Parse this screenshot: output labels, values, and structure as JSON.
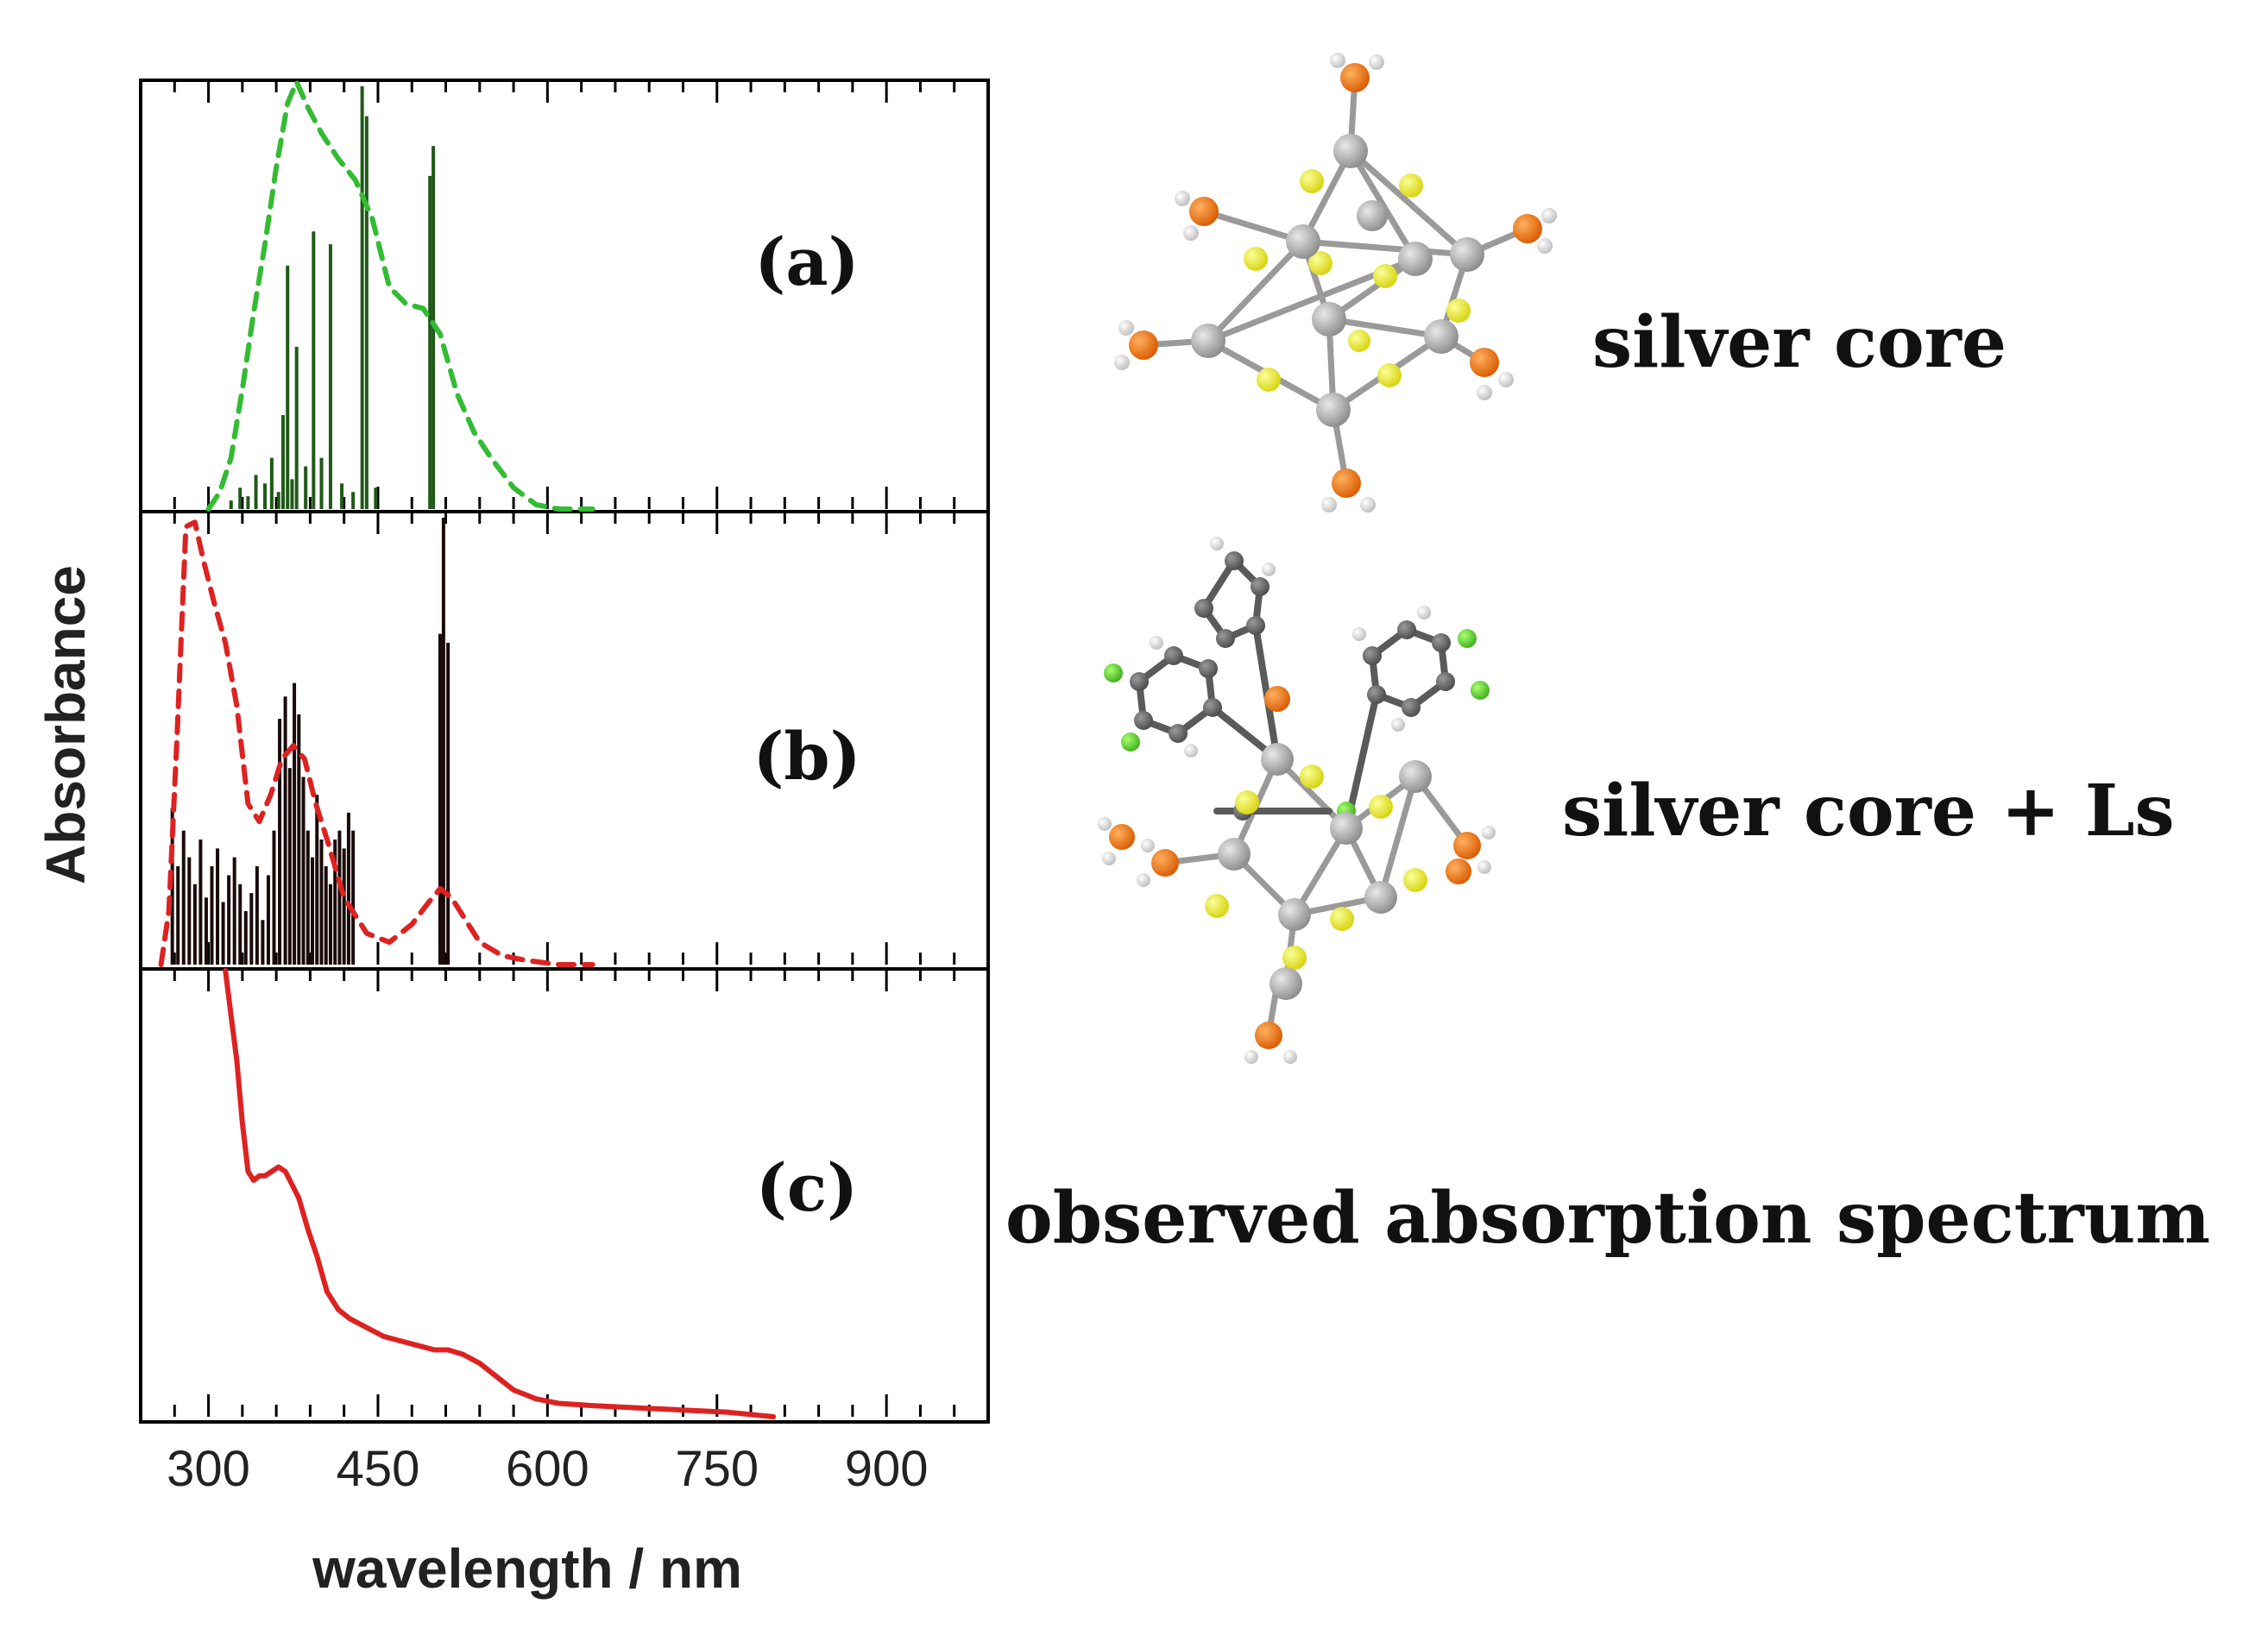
{
  "chart_data": {
    "type": "line",
    "x_axis": {
      "label": "wavelength / nm",
      "range": [
        240,
        990
      ],
      "ticks": [
        300,
        450,
        600,
        750,
        900
      ],
      "tick_labels": [
        "300",
        "450",
        "600",
        "750",
        "900"
      ]
    },
    "y_axis": {
      "label": "Absorbance"
    },
    "panels": [
      {
        "tag": "(a)",
        "structure_label": "silver core",
        "series": [
          {
            "name": "calculated spectrum (broadened)",
            "style": "dashed",
            "color": "#33bb33",
            "x": [
              300,
              310,
              320,
              330,
              340,
              350,
              360,
              370,
              378,
              388,
              400,
              415,
              430,
              445,
              460,
              475,
              490,
              505,
              520,
              535,
              550,
              570,
              590,
              610,
              640
            ],
            "y": [
              0.0,
              0.04,
              0.12,
              0.28,
              0.46,
              0.62,
              0.8,
              0.95,
              1.0,
              0.94,
              0.88,
              0.82,
              0.77,
              0.68,
              0.52,
              0.48,
              0.47,
              0.41,
              0.27,
              0.18,
              0.12,
              0.05,
              0.01,
              0.0,
              0.0
            ]
          }
        ],
        "sticks": {
          "name": "oscillator strengths",
          "color": "#1f5a16",
          "x": [
            320,
            328,
            335,
            342,
            350,
            356,
            362,
            366,
            370,
            374,
            378,
            386,
            393,
            400,
            408,
            418,
            428,
            436,
            440,
            448,
            496,
            499
          ],
          "y": [
            0.02,
            0.05,
            0.03,
            0.08,
            0.06,
            0.12,
            0.04,
            0.22,
            0.57,
            0.07,
            0.38,
            0.1,
            0.65,
            0.12,
            0.62,
            0.06,
            0.04,
            0.99,
            0.92,
            0.05,
            0.78,
            0.85
          ]
        }
      },
      {
        "tag": "(b)",
        "structure_label": "silver core + Ls",
        "series": [
          {
            "name": "calculated spectrum (broadened)",
            "style": "dashed",
            "color": "#dd2222",
            "x": [
              258,
              265,
              272,
              280,
              288,
              296,
              305,
              315,
              325,
              335,
              345,
              355,
              365,
              375,
              385,
              395,
              405,
              420,
              440,
              460,
              480,
              495,
              505,
              515,
              525,
              540,
              560,
              580,
              610,
              640
            ],
            "y": [
              0.0,
              0.12,
              0.5,
              0.98,
              0.99,
              0.9,
              0.81,
              0.72,
              0.58,
              0.36,
              0.32,
              0.38,
              0.46,
              0.49,
              0.46,
              0.36,
              0.28,
              0.15,
              0.07,
              0.05,
              0.09,
              0.14,
              0.17,
              0.15,
              0.11,
              0.05,
              0.02,
              0.01,
              0.0,
              0.0
            ]
          }
        ],
        "sticks": {
          "name": "oscillator strengths",
          "color": "#1a0a0a",
          "x": [
            268,
            273,
            278,
            283,
            288,
            293,
            298,
            303,
            308,
            313,
            318,
            323,
            328,
            333,
            338,
            343,
            348,
            353,
            358,
            363,
            368,
            372,
            376,
            380,
            384,
            388,
            392,
            396,
            400,
            404,
            408,
            412,
            416,
            420,
            424,
            428,
            505,
            508,
            512
          ],
          "y": [
            0.35,
            0.22,
            0.3,
            0.24,
            0.18,
            0.28,
            0.15,
            0.22,
            0.26,
            0.14,
            0.2,
            0.24,
            0.18,
            0.12,
            0.16,
            0.22,
            0.1,
            0.2,
            0.3,
            0.55,
            0.6,
            0.44,
            0.63,
            0.56,
            0.42,
            0.3,
            0.24,
            0.38,
            0.28,
            0.22,
            0.18,
            0.28,
            0.3,
            0.26,
            0.34,
            0.3,
            0.74,
            1.0,
            0.72
          ]
        }
      },
      {
        "tag": "(c)",
        "structure_label": "observed absorption spectrum",
        "series": [
          {
            "name": "observed spectrum",
            "style": "solid",
            "color": "#dd2222",
            "x": [
              315,
              320,
              325,
              330,
              335,
              340,
              345,
              350,
              356,
              362,
              368,
              374,
              380,
              388,
              396,
              405,
              415,
              425,
              440,
              455,
              470,
              485,
              500,
              512,
              525,
              540,
              555,
              570,
              590,
              610,
              640,
              680,
              720,
              760,
              800
            ],
            "y": [
              1.0,
              0.9,
              0.8,
              0.66,
              0.55,
              0.53,
              0.54,
              0.54,
              0.55,
              0.56,
              0.55,
              0.52,
              0.49,
              0.42,
              0.36,
              0.28,
              0.24,
              0.22,
              0.2,
              0.18,
              0.17,
              0.16,
              0.15,
              0.15,
              0.14,
              0.12,
              0.09,
              0.06,
              0.04,
              0.03,
              0.025,
              0.02,
              0.015,
              0.01,
              0.0
            ]
          }
        ]
      }
    ],
    "colors": {
      "frame": "#000000",
      "text": "#111111"
    }
  }
}
